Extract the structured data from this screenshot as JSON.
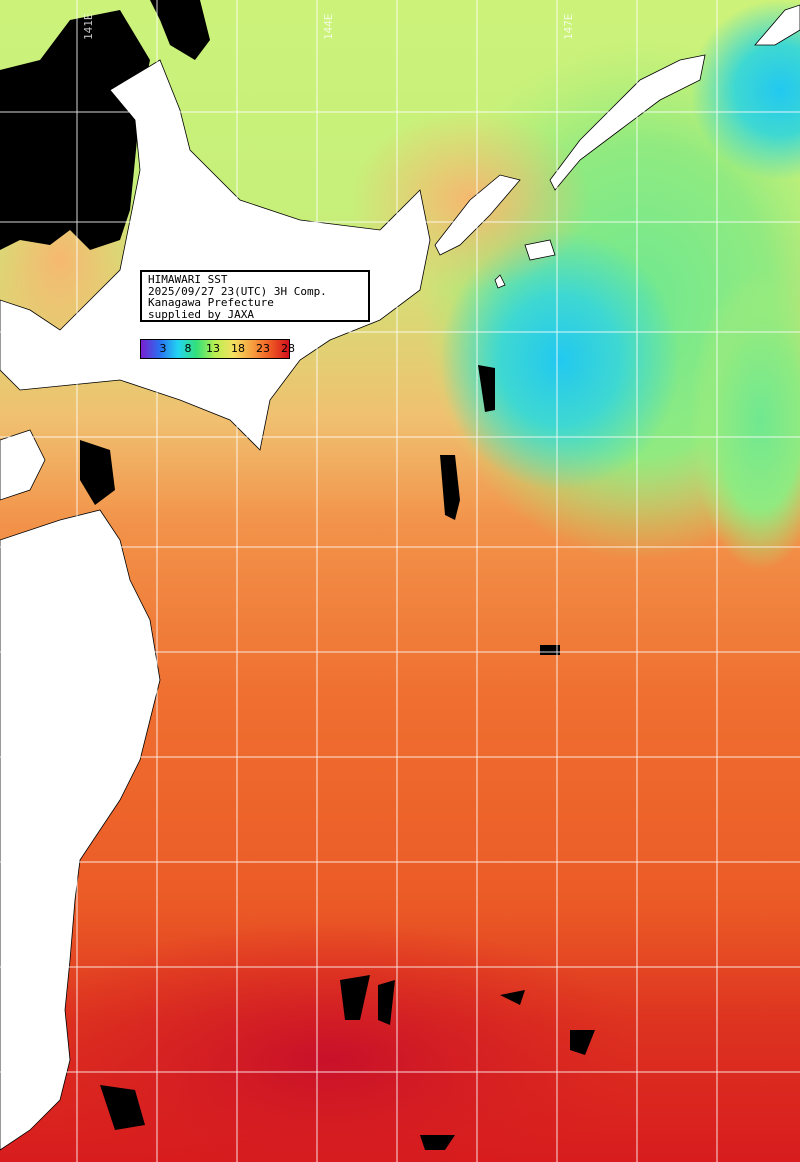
{
  "map": {
    "info_lines": [
      "HIMAWARI SST",
      "2025/09/27 23(UTC) 3H Comp.",
      "Kanagawa Prefecture",
      "supplied by JAXA"
    ],
    "colorbar": {
      "ticks": [
        "3",
        "8",
        "13",
        "18",
        "23",
        "28"
      ],
      "colors": [
        "#7a1fd0",
        "#2a6ff0",
        "#22d4f2",
        "#33e07a",
        "#b8f050",
        "#f4e060",
        "#f7a040",
        "#ee5a22",
        "#d4101e"
      ]
    },
    "lon_labels": [
      "141E",
      "144E",
      "147E"
    ],
    "colors": {
      "land": "#ffffff",
      "cloud": "#000000",
      "grid": "#ffffff",
      "warm_south": "#d8231f",
      "orange": "#f06a2a",
      "tan": "#f4a85a",
      "yellow_green": "#d8f06a",
      "green": "#8ee87a",
      "cyan": "#40d8c8",
      "blue": "#1ec0f0"
    }
  }
}
